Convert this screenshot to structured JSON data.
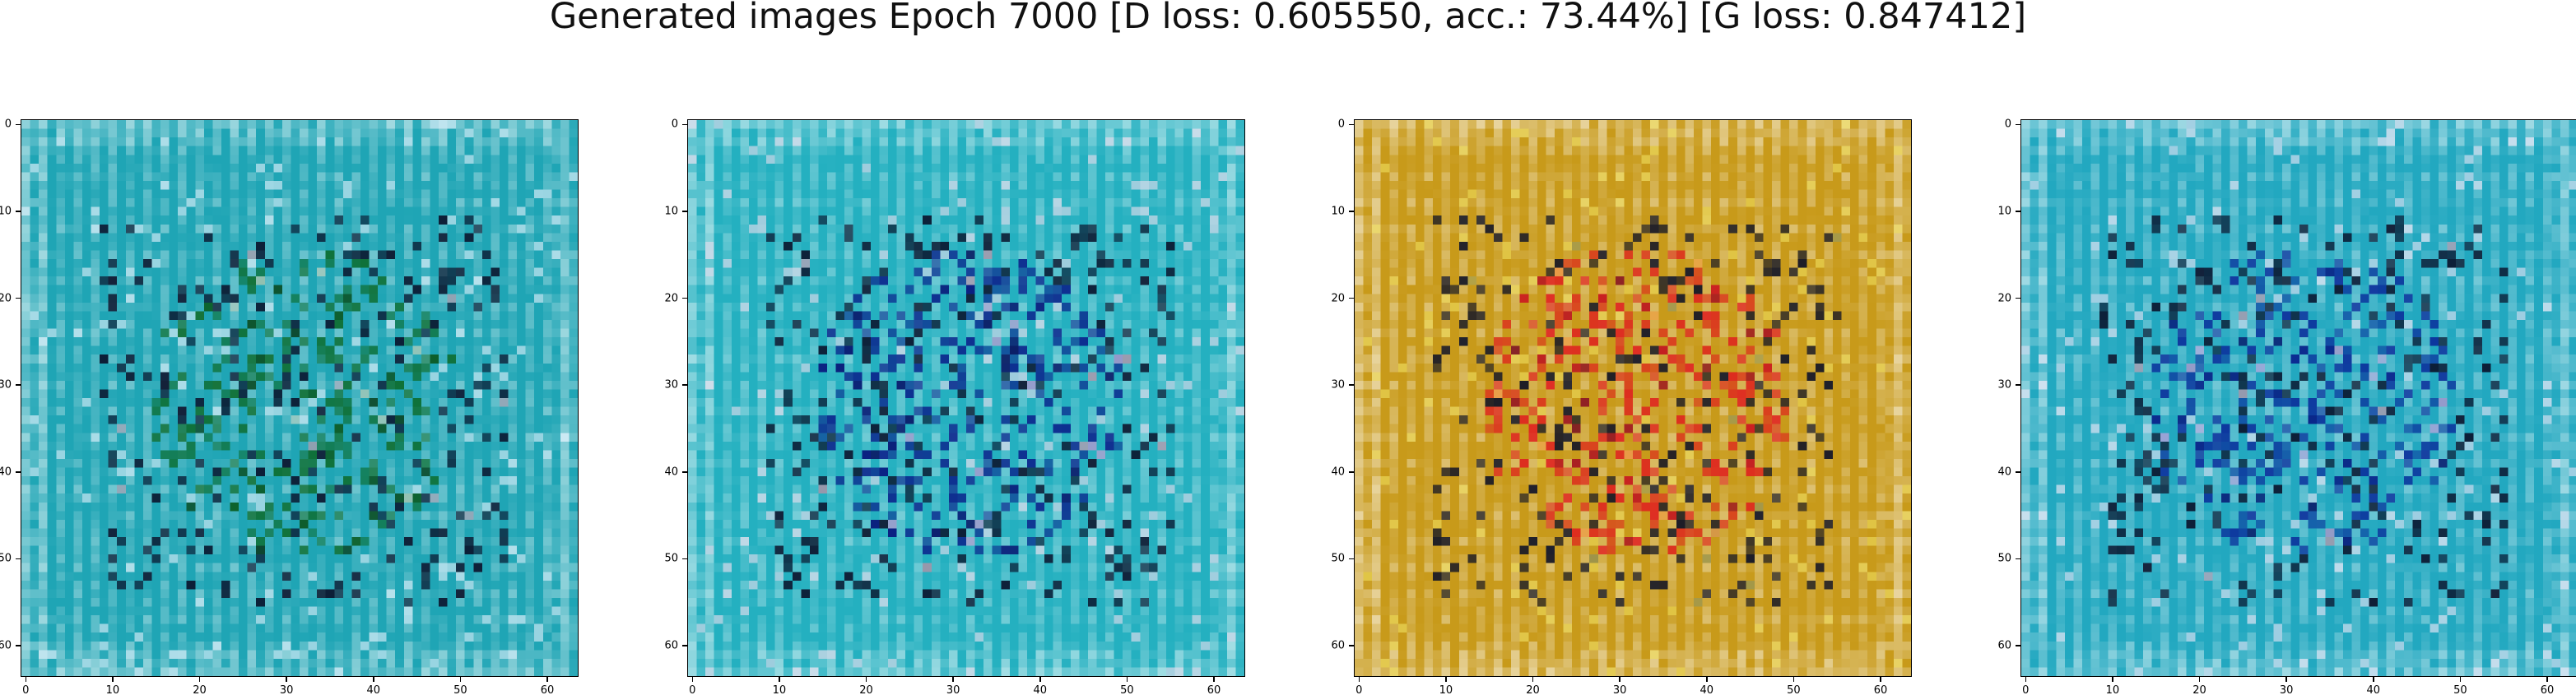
{
  "figure": {
    "title": "Generated images Epoch 7000 [D loss: 0.605550, acc.: 73.44%] [G loss: 0.847412]"
  },
  "axes": {
    "xticks": [
      "0",
      "10",
      "20",
      "30",
      "40",
      "50",
      "60"
    ],
    "yticks": [
      "0",
      "10",
      "20",
      "30",
      "40",
      "50",
      "60"
    ],
    "image_size": 64
  },
  "panels": [
    {
      "id": "sample-1",
      "palette": "teal-green",
      "base_color": "#1fa5b5",
      "accent_color": "#0d6b2a",
      "highlight_color": "#e8f4ff"
    },
    {
      "id": "sample-2",
      "palette": "teal-white",
      "base_color": "#24b0c0",
      "accent_color": "#0a1f8a",
      "highlight_color": "#f0e0f0"
    },
    {
      "id": "sample-3",
      "palette": "olive-red",
      "base_color": "#c89a1a",
      "accent_color": "#e02020",
      "highlight_color": "#f0e060"
    },
    {
      "id": "sample-4",
      "palette": "teal-blue",
      "base_color": "#22a8c0",
      "accent_color": "#0a2a9a",
      "highlight_color": "#f0e8f8"
    }
  ]
}
